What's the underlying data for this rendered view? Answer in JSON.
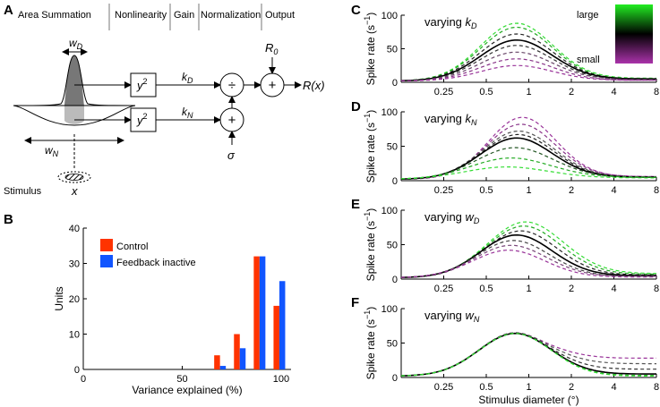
{
  "panels": {
    "a": "A",
    "b": "B",
    "c": "C",
    "d": "D",
    "e": "E",
    "f": "F"
  },
  "diagram": {
    "headers": [
      "Area Summation",
      "Nonlinearity",
      "Gain",
      "Normalization",
      "Output"
    ],
    "w_d": "w",
    "w_d_sub": "D",
    "w_n": "w",
    "w_n_sub": "N",
    "square_top": "y",
    "square_bottom": "y",
    "square_exp": "2",
    "k_d": "k",
    "k_d_sub": "D",
    "k_n": "k",
    "k_n_sub": "N",
    "divide_symbol": "÷",
    "plus_symbol": "+",
    "r0": "R",
    "r0_sub": "0",
    "sigma": "σ",
    "output": "R(x)",
    "stimulus_label": "Stimulus",
    "stimulus_var": "x"
  },
  "colorbar": {
    "top_label": "large",
    "bottom_label": "small",
    "top_color": "#22dd22",
    "bottom_color": "#993399"
  },
  "chart_data": [
    {
      "id": "B",
      "type": "bar",
      "categories": [
        60,
        70,
        80,
        90,
        100
      ],
      "series": [
        {
          "name": "Control",
          "color": "#ff3300",
          "values": [
            0,
            4,
            10,
            32,
            18
          ]
        },
        {
          "name": "Feedback inactive",
          "color": "#1155ff",
          "values": [
            0,
            1,
            6,
            32,
            25
          ]
        }
      ],
      "xlabel": "Variance explained (%)",
      "ylabel": "Units",
      "xlim": [
        0,
        105
      ],
      "ylim": [
        0,
        40
      ],
      "xticks": [
        0,
        50,
        100
      ],
      "yticks": [
        0,
        10,
        20,
        30,
        40
      ]
    },
    {
      "id": "C",
      "type": "line",
      "title": "varying",
      "title_var": "k",
      "title_sub": "D",
      "xlog": true,
      "xlim": [
        0.125,
        8
      ],
      "ylim": [
        0,
        100
      ],
      "xticks": [
        0.25,
        0.5,
        1,
        2,
        4,
        8
      ],
      "xtick_labels": [
        "0.25",
        "0.5",
        "1",
        "2",
        "4",
        "8"
      ],
      "yticks": [
        0,
        50,
        100
      ],
      "ylabel": "Spike rate (s",
      "ylabel_sup": "−1",
      "curves": [
        {
          "style": "dashed",
          "color": "#33dd33",
          "peak": 88,
          "peak_x": 0.82,
          "sigma": 0.85,
          "tail": 6,
          "base": 2
        },
        {
          "style": "dashed",
          "color": "#22aa22",
          "peak": 82,
          "peak_x": 0.82,
          "sigma": 0.85,
          "tail": 5,
          "base": 2
        },
        {
          "style": "dashed",
          "color": "#222222",
          "peak": 72,
          "peak_x": 0.82,
          "sigma": 0.85,
          "tail": 5,
          "base": 2
        },
        {
          "style": "solid",
          "color": "#000000",
          "peak": 63,
          "peak_x": 0.82,
          "sigma": 0.85,
          "tail": 5,
          "base": 2
        },
        {
          "style": "dashed",
          "color": "#333333",
          "peak": 55,
          "peak_x": 0.82,
          "sigma": 0.85,
          "tail": 4,
          "base": 2
        },
        {
          "style": "dashed",
          "color": "#664466",
          "peak": 45,
          "peak_x": 0.82,
          "sigma": 0.85,
          "tail": 4,
          "base": 2
        },
        {
          "style": "dashed",
          "color": "#883388",
          "peak": 35,
          "peak_x": 0.82,
          "sigma": 0.85,
          "tail": 3,
          "base": 2
        },
        {
          "style": "dashed",
          "color": "#993399",
          "peak": 25,
          "peak_x": 0.82,
          "sigma": 0.85,
          "tail": 3,
          "base": 2
        }
      ]
    },
    {
      "id": "D",
      "type": "line",
      "title": "varying",
      "title_var": "k",
      "title_sub": "N",
      "xlog": true,
      "xlim": [
        0.125,
        8
      ],
      "ylim": [
        0,
        100
      ],
      "xticks": [
        0.25,
        0.5,
        1,
        2,
        4,
        8
      ],
      "xtick_labels": [
        "0.25",
        "0.5",
        "1",
        "2",
        "4",
        "8"
      ],
      "yticks": [
        0,
        50,
        100
      ],
      "ylabel": "Spike rate (s",
      "ylabel_sup": "−1",
      "curves": [
        {
          "style": "dashed",
          "color": "#993399",
          "peak": 92,
          "peak_x": 0.9,
          "sigma": 0.8,
          "tail": 6,
          "base": 2
        },
        {
          "style": "dashed",
          "color": "#883388",
          "peak": 82,
          "peak_x": 0.88,
          "sigma": 0.82,
          "tail": 6,
          "base": 2
        },
        {
          "style": "dashed",
          "color": "#555555",
          "peak": 72,
          "peak_x": 0.85,
          "sigma": 0.85,
          "tail": 5,
          "base": 2
        },
        {
          "style": "dashed",
          "color": "#222222",
          "peak": 67,
          "peak_x": 0.84,
          "sigma": 0.85,
          "tail": 5,
          "base": 2
        },
        {
          "style": "solid",
          "color": "#000000",
          "peak": 62,
          "peak_x": 0.82,
          "sigma": 0.85,
          "tail": 5,
          "base": 2
        },
        {
          "style": "dashed",
          "color": "#225522",
          "peak": 48,
          "peak_x": 0.8,
          "sigma": 0.9,
          "tail": 5,
          "base": 2
        },
        {
          "style": "dashed",
          "color": "#22aa22",
          "peak": 33,
          "peak_x": 0.75,
          "sigma": 0.95,
          "tail": 5,
          "base": 2
        },
        {
          "style": "dashed",
          "color": "#33dd33",
          "peak": 20,
          "peak_x": 0.7,
          "sigma": 1.0,
          "tail": 4,
          "base": 2
        }
      ]
    },
    {
      "id": "E",
      "type": "line",
      "title": "varying",
      "title_var": "w",
      "title_sub": "D",
      "xlog": true,
      "xlim": [
        0.125,
        8
      ],
      "ylim": [
        0,
        100
      ],
      "xticks": [
        0.25,
        0.5,
        1,
        2,
        4,
        8
      ],
      "xtick_labels": [
        "0.25",
        "0.5",
        "1",
        "2",
        "4",
        "8"
      ],
      "yticks": [
        0,
        50,
        100
      ],
      "ylabel": "Spike rate (s",
      "ylabel_sup": "−1",
      "curves": [
        {
          "style": "dashed",
          "color": "#33dd33",
          "peak": 83,
          "peak_x": 0.95,
          "sigma": 0.9,
          "tail": 8,
          "base": 2
        },
        {
          "style": "dashed",
          "color": "#22aa22",
          "peak": 77,
          "peak_x": 0.92,
          "sigma": 0.88,
          "tail": 7,
          "base": 2
        },
        {
          "style": "dashed",
          "color": "#222222",
          "peak": 70,
          "peak_x": 0.88,
          "sigma": 0.86,
          "tail": 6,
          "base": 2
        },
        {
          "style": "solid",
          "color": "#000000",
          "peak": 64,
          "peak_x": 0.82,
          "sigma": 0.85,
          "tail": 5,
          "base": 2
        },
        {
          "style": "dashed",
          "color": "#444444",
          "peak": 56,
          "peak_x": 0.78,
          "sigma": 0.85,
          "tail": 4,
          "base": 2
        },
        {
          "style": "dashed",
          "color": "#774477",
          "peak": 49,
          "peak_x": 0.75,
          "sigma": 0.85,
          "tail": 4,
          "base": 2
        },
        {
          "style": "dashed",
          "color": "#993399",
          "peak": 42,
          "peak_x": 0.72,
          "sigma": 0.85,
          "tail": 3,
          "base": 2
        }
      ]
    },
    {
      "id": "F",
      "type": "line",
      "title": "varying",
      "title_var": "w",
      "title_sub": "N",
      "xlog": true,
      "xlim": [
        0.125,
        8
      ],
      "ylim": [
        0,
        100
      ],
      "xticks": [
        0.25,
        0.5,
        1,
        2,
        4,
        8
      ],
      "xtick_labels": [
        "0.25",
        "0.5",
        "1",
        "2",
        "4",
        "8"
      ],
      "yticks": [
        0,
        50,
        100
      ],
      "ylabel": "Spike rate (s",
      "ylabel_sup": "−1",
      "xlabel": "Stimulus diameter (°)",
      "curves": [
        {
          "style": "dashed",
          "color": "#993399",
          "peak": 65,
          "peak_x": 0.8,
          "sigma": 0.85,
          "tail": 28,
          "base": 2
        },
        {
          "style": "dashed",
          "color": "#555555",
          "peak": 65,
          "peak_x": 0.8,
          "sigma": 0.85,
          "tail": 20,
          "base": 2
        },
        {
          "style": "dashed",
          "color": "#333333",
          "peak": 64,
          "peak_x": 0.8,
          "sigma": 0.85,
          "tail": 12,
          "base": 2
        },
        {
          "style": "solid",
          "color": "#000000",
          "peak": 64,
          "peak_x": 0.8,
          "sigma": 0.85,
          "tail": 5,
          "base": 2
        },
        {
          "style": "dashed",
          "color": "#22aa22",
          "peak": 64,
          "peak_x": 0.8,
          "sigma": 0.85,
          "tail": 3,
          "base": 2
        },
        {
          "style": "dashed",
          "color": "#33dd33",
          "peak": 64,
          "peak_x": 0.8,
          "sigma": 0.85,
          "tail": 2,
          "base": 2
        }
      ]
    }
  ]
}
